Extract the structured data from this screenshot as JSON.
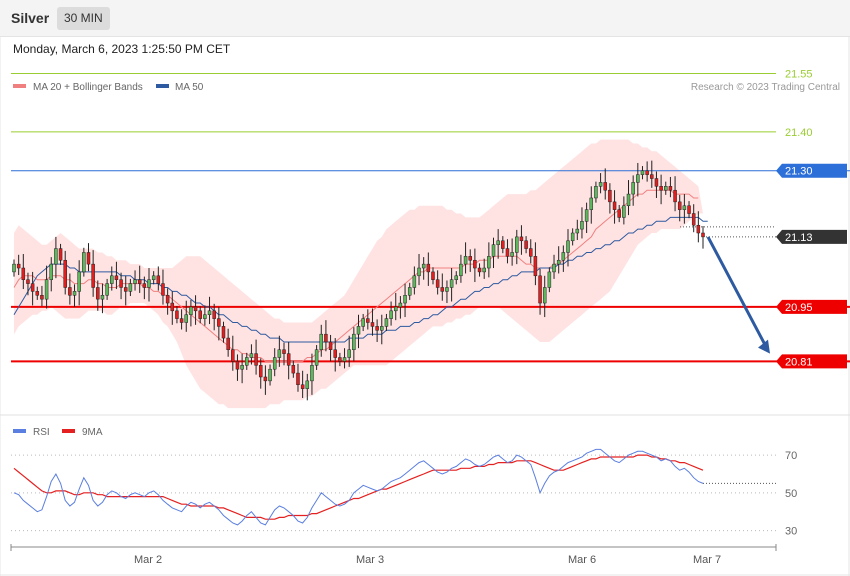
{
  "header": {
    "instrument": "Silver",
    "timeframe": "30 MIN",
    "datetime": "Monday, March 6, 2023 1:25:50 PM CET"
  },
  "legend_main": [
    {
      "label": "MA 20 + Bollinger Bands",
      "color": "#f08080"
    },
    {
      "label": "MA 50",
      "color": "#2d5aa0"
    }
  ],
  "copyright": "Research © 2023 Trading Central",
  "legend_rsi": [
    {
      "label": "RSI",
      "color": "#5b7fe0"
    },
    {
      "label": "9MA",
      "color": "#e52020"
    }
  ],
  "colors": {
    "bull": "#5cb85c",
    "bear": "#e02020",
    "wick": "#222222",
    "resistance": "#9acd32",
    "pivot_line": "#2d6fd8",
    "support": "#ee0000",
    "arrow": "#2d5aa0",
    "band_fill": "#ffd9d9"
  },
  "chart_data": [
    {
      "type": "candlestick",
      "title": "Silver",
      "y_ticks": [
        20.81,
        20.95,
        21.13,
        21.3,
        21.4,
        21.55
      ],
      "x_ticks": [
        "Mar 2",
        "Mar 3",
        "Mar 6",
        "Mar 7"
      ],
      "ylim": [
        20.68,
        21.6
      ],
      "levels": [
        {
          "value": 21.55,
          "label": "21.55",
          "role": "resistance"
        },
        {
          "value": 21.4,
          "label": "21.40",
          "role": "resistance"
        },
        {
          "value": 21.3,
          "label": "21.30",
          "role": "pivot"
        },
        {
          "value": 21.13,
          "label": "21.13",
          "role": "current"
        },
        {
          "value": 20.95,
          "label": "20.95",
          "role": "support"
        },
        {
          "value": 20.81,
          "label": "20.81",
          "role": "support"
        }
      ],
      "forecast_arrow": {
        "from": 21.13,
        "to": 20.83
      },
      "closes": [
        21.06,
        21.05,
        21.02,
        21.01,
        20.99,
        20.98,
        20.97,
        21.02,
        21.06,
        21.1,
        21.07,
        21.0,
        20.98,
        20.99,
        21.04,
        21.09,
        21.06,
        21.0,
        20.97,
        20.98,
        21.01,
        21.03,
        21.02,
        21.0,
        20.99,
        21.01,
        21.02,
        21.01,
        21.0,
        21.02,
        21.03,
        21.01,
        20.98,
        20.96,
        20.94,
        20.92,
        20.91,
        20.93,
        20.95,
        20.94,
        20.92,
        20.93,
        20.94,
        20.92,
        20.9,
        20.87,
        20.84,
        20.81,
        20.79,
        20.8,
        20.82,
        20.83,
        20.8,
        20.77,
        20.76,
        20.79,
        20.82,
        20.84,
        20.83,
        20.8,
        20.78,
        20.75,
        20.74,
        20.76,
        20.8,
        20.84,
        20.88,
        20.86,
        20.84,
        20.82,
        20.81,
        20.82,
        20.84,
        20.88,
        20.9,
        20.92,
        20.91,
        20.9,
        20.89,
        20.9,
        20.92,
        20.94,
        20.95,
        20.96,
        20.98,
        21.0,
        21.03,
        21.05,
        21.06,
        21.04,
        21.02,
        21.0,
        20.99,
        21.0,
        21.02,
        21.03,
        21.06,
        21.08,
        21.07,
        21.05,
        21.04,
        21.05,
        21.08,
        21.11,
        21.12,
        21.1,
        21.08,
        21.09,
        21.13,
        21.12,
        21.1,
        21.08,
        21.03,
        20.96,
        21.0,
        21.04,
        21.06,
        21.07,
        21.09,
        21.12,
        21.14,
        21.15,
        21.17,
        21.2,
        21.23,
        21.26,
        21.27,
        21.25,
        21.22,
        21.2,
        21.18,
        21.21,
        21.24,
        21.27,
        21.29,
        21.3,
        21.29,
        21.28,
        21.26,
        21.25,
        21.26,
        21.25,
        21.22,
        21.2,
        21.21,
        21.19,
        21.16,
        21.14,
        21.13
      ],
      "ma20": [
        21.0,
        21.02,
        21.03,
        21.03,
        21.03,
        21.02,
        21.02,
        21.02,
        21.03,
        21.03,
        21.03,
        21.02,
        21.02,
        21.01,
        21.01,
        21.01,
        21.02,
        21.02,
        21.01,
        21.01,
        21.0,
        21.0,
        21.0,
        21.01,
        21.01,
        21.01,
        21.01,
        21.01,
        21.0,
        21.0,
        20.99,
        20.99,
        20.98,
        20.98,
        20.97,
        20.96,
        20.95,
        20.94,
        20.93,
        20.92,
        20.91,
        20.9,
        20.89,
        20.88,
        20.87,
        20.86,
        20.85,
        20.84,
        20.84,
        20.83,
        20.83,
        20.82,
        20.82,
        20.82,
        20.81,
        20.81,
        20.81,
        20.81,
        20.81,
        20.81,
        20.81,
        20.81,
        20.81,
        20.82,
        20.82,
        20.83,
        20.84,
        20.84,
        20.85,
        20.86,
        20.87,
        20.88,
        20.89,
        20.9,
        20.91,
        20.92,
        20.93,
        20.94,
        20.95,
        20.96,
        20.97,
        20.98,
        20.99,
        21.0,
        21.01,
        21.02,
        21.03,
        21.04,
        21.04,
        21.05,
        21.05,
        21.05,
        21.05,
        21.05,
        21.05,
        21.05,
        21.05,
        21.06,
        21.06,
        21.06,
        21.07,
        21.07,
        21.07,
        21.08,
        21.08,
        21.08,
        21.08,
        21.08,
        21.08,
        21.07,
        21.06,
        21.06,
        21.05,
        21.05,
        21.05,
        21.05,
        21.06,
        21.06,
        21.07,
        21.08,
        21.09,
        21.1,
        21.11,
        21.12,
        21.13,
        21.15,
        21.16,
        21.17,
        21.18,
        21.19,
        21.2,
        21.21,
        21.22,
        21.23,
        21.24,
        21.24,
        21.25,
        21.25,
        21.25,
        21.25,
        21.25,
        21.25,
        21.24,
        21.24,
        21.24,
        21.24,
        21.23,
        21.23
      ],
      "bb_upper": [
        21.14,
        21.16,
        21.15,
        21.14,
        21.13,
        21.12,
        21.11,
        21.11,
        21.12,
        21.13,
        21.14,
        21.13,
        21.12,
        21.11,
        21.1,
        21.1,
        21.1,
        21.1,
        21.09,
        21.09,
        21.08,
        21.08,
        21.07,
        21.07,
        21.07,
        21.06,
        21.06,
        21.06,
        21.05,
        21.05,
        21.05,
        21.05,
        21.05,
        21.05,
        21.05,
        21.06,
        21.07,
        21.08,
        21.08,
        21.08,
        21.08,
        21.07,
        21.06,
        21.05,
        21.04,
        21.03,
        21.02,
        21.01,
        21.0,
        20.99,
        20.98,
        20.97,
        20.96,
        20.95,
        20.94,
        20.93,
        20.92,
        20.92,
        20.91,
        20.91,
        20.91,
        20.91,
        20.91,
        20.91,
        20.91,
        20.92,
        20.93,
        20.94,
        20.95,
        20.96,
        20.97,
        20.98,
        21.0,
        21.02,
        21.04,
        21.06,
        21.08,
        21.1,
        21.12,
        21.13,
        21.15,
        21.16,
        21.17,
        21.18,
        21.19,
        21.2,
        21.2,
        21.21,
        21.21,
        21.21,
        21.21,
        21.21,
        21.21,
        21.2,
        21.2,
        21.19,
        21.19,
        21.18,
        21.18,
        21.18,
        21.18,
        21.19,
        21.2,
        21.21,
        21.22,
        21.23,
        21.24,
        21.24,
        21.24,
        21.24,
        21.24,
        21.25,
        21.25,
        21.26,
        21.27,
        21.28,
        21.29,
        21.3,
        21.31,
        21.32,
        21.33,
        21.34,
        21.35,
        21.36,
        21.37,
        21.37,
        21.38,
        21.38,
        21.38,
        21.38,
        21.38,
        21.38,
        21.38,
        21.37,
        21.37,
        21.36,
        21.36,
        21.35,
        21.35,
        21.34,
        21.33,
        21.32,
        21.31,
        21.3,
        21.29,
        21.28,
        21.27,
        21.26
      ],
      "bb_lower": [
        20.88,
        20.9,
        20.91,
        20.92,
        20.93,
        20.93,
        20.94,
        20.94,
        20.95,
        20.94,
        20.93,
        20.92,
        20.92,
        20.92,
        20.92,
        20.93,
        20.94,
        20.94,
        20.94,
        20.94,
        20.93,
        20.93,
        20.94,
        20.95,
        20.95,
        20.96,
        20.96,
        20.96,
        20.96,
        20.95,
        20.94,
        20.93,
        20.91,
        20.9,
        20.88,
        20.86,
        20.83,
        20.8,
        20.78,
        20.76,
        20.74,
        20.73,
        20.72,
        20.71,
        20.7,
        20.7,
        20.69,
        20.69,
        20.69,
        20.69,
        20.69,
        20.69,
        20.69,
        20.69,
        20.69,
        20.7,
        20.7,
        20.7,
        20.71,
        20.71,
        20.71,
        20.71,
        20.71,
        20.72,
        20.72,
        20.73,
        20.74,
        20.74,
        20.75,
        20.76,
        20.77,
        20.78,
        20.79,
        20.8,
        20.8,
        20.8,
        20.8,
        20.8,
        20.8,
        20.8,
        20.8,
        20.81,
        20.82,
        20.83,
        20.84,
        20.85,
        20.86,
        20.87,
        20.88,
        20.89,
        20.9,
        20.9,
        20.9,
        20.91,
        20.91,
        20.92,
        20.92,
        20.93,
        20.93,
        20.94,
        20.95,
        20.95,
        20.95,
        20.95,
        20.95,
        20.94,
        20.93,
        20.92,
        20.91,
        20.9,
        20.89,
        20.88,
        20.87,
        20.86,
        20.86,
        20.86,
        20.87,
        20.88,
        20.89,
        20.9,
        20.91,
        20.92,
        20.93,
        20.94,
        20.95,
        20.96,
        20.97,
        20.98,
        20.99,
        21.01,
        21.03,
        21.05,
        21.07,
        21.09,
        21.11,
        21.12,
        21.13,
        21.14,
        21.14,
        21.15,
        21.15,
        21.15,
        21.15,
        21.15,
        21.16,
        21.17,
        21.18,
        21.19,
        21.19,
        21.2
      ],
      "ma50": [
        20.93,
        20.95,
        20.97,
        20.99,
        21.01,
        21.03,
        21.04,
        21.05,
        21.06,
        21.06,
        21.06,
        21.06,
        21.05,
        21.05,
        21.04,
        21.04,
        21.04,
        21.04,
        21.04,
        21.04,
        21.04,
        21.04,
        21.04,
        21.03,
        21.03,
        21.03,
        21.02,
        21.02,
        21.02,
        21.01,
        21.01,
        21.01,
        21.0,
        21.0,
        20.99,
        20.99,
        20.98,
        20.98,
        20.97,
        20.96,
        20.96,
        20.95,
        20.95,
        20.94,
        20.93,
        20.93,
        20.92,
        20.91,
        20.91,
        20.9,
        20.9,
        20.89,
        20.89,
        20.88,
        20.88,
        20.87,
        20.87,
        20.87,
        20.86,
        20.86,
        20.86,
        20.86,
        20.86,
        20.86,
        20.86,
        20.86,
        20.86,
        20.86,
        20.86,
        20.86,
        20.86,
        20.86,
        20.87,
        20.87,
        20.87,
        20.87,
        20.88,
        20.88,
        20.88,
        20.88,
        20.89,
        20.89,
        20.89,
        20.9,
        20.9,
        20.9,
        20.91,
        20.91,
        20.92,
        20.92,
        20.93,
        20.93,
        20.94,
        20.95,
        20.95,
        20.96,
        20.97,
        20.97,
        20.98,
        20.99,
        20.99,
        21.0,
        21.0,
        21.01,
        21.01,
        21.02,
        21.02,
        21.03,
        21.03,
        21.04,
        21.04,
        21.04,
        21.04,
        21.05,
        21.05,
        21.05,
        21.05,
        21.06,
        21.06,
        21.07,
        21.07,
        21.08,
        21.08,
        21.09,
        21.09,
        21.1,
        21.1,
        21.11,
        21.11,
        21.12,
        21.12,
        21.13,
        21.14,
        21.14,
        21.15,
        21.15,
        21.16,
        21.16,
        21.17,
        21.17,
        21.17,
        21.18,
        21.18,
        21.18,
        21.18,
        21.18,
        21.18,
        21.18,
        21.17,
        21.17
      ]
    },
    {
      "type": "line",
      "title": "RSI",
      "y_ticks": [
        30,
        50,
        70
      ],
      "ylim": [
        25,
        78
      ],
      "series": [
        {
          "name": "RSI",
          "values": [
            50,
            49,
            46,
            44,
            42,
            40,
            41,
            48,
            56,
            60,
            55,
            46,
            43,
            45,
            52,
            58,
            54,
            46,
            43,
            45,
            49,
            51,
            50,
            48,
            47,
            49,
            50,
            49,
            48,
            50,
            51,
            49,
            46,
            44,
            42,
            41,
            40,
            43,
            45,
            44,
            42,
            44,
            45,
            43,
            41,
            38,
            36,
            34,
            33,
            35,
            38,
            40,
            37,
            34,
            33,
            37,
            41,
            43,
            42,
            40,
            38,
            35,
            34,
            37,
            42,
            46,
            50,
            48,
            46,
            44,
            43,
            44,
            46,
            50,
            52,
            54,
            53,
            52,
            51,
            52,
            54,
            56,
            57,
            58,
            60,
            62,
            64,
            66,
            67,
            65,
            63,
            61,
            60,
            61,
            63,
            64,
            66,
            68,
            67,
            65,
            64,
            65,
            67,
            69,
            70,
            68,
            66,
            67,
            70,
            69,
            67,
            65,
            58,
            50,
            55,
            59,
            61,
            62,
            64,
            66,
            67,
            68,
            69,
            71,
            72,
            73,
            73,
            71,
            69,
            67,
            66,
            68,
            70,
            71,
            72,
            72,
            71,
            70,
            69,
            67,
            68,
            67,
            64,
            62,
            63,
            61,
            58,
            56,
            55
          ]
        },
        {
          "name": "9MA",
          "values": [
            63,
            61,
            59,
            57,
            55,
            53,
            51,
            50,
            50,
            51,
            51,
            51,
            50,
            49,
            49,
            50,
            50,
            50,
            49,
            49,
            48,
            48,
            48,
            48,
            48,
            48,
            48,
            48,
            48,
            48,
            48,
            48,
            48,
            47,
            46,
            45,
            44,
            44,
            43,
            43,
            43,
            43,
            43,
            43,
            42,
            42,
            41,
            40,
            39,
            38,
            37,
            37,
            37,
            37,
            36,
            36,
            36,
            37,
            37,
            38,
            38,
            38,
            38,
            38,
            39,
            39,
            40,
            41,
            42,
            43,
            44,
            45,
            46,
            47,
            47,
            48,
            49,
            50,
            51,
            52,
            52,
            53,
            54,
            55,
            56,
            57,
            58,
            59,
            60,
            61,
            62,
            62,
            62,
            62,
            62,
            62,
            63,
            63,
            63,
            64,
            64,
            64,
            65,
            65,
            66,
            66,
            66,
            66,
            67,
            67,
            67,
            67,
            66,
            65,
            64,
            63,
            62,
            62,
            62,
            63,
            64,
            65,
            66,
            67,
            68,
            68,
            69,
            69,
            69,
            69,
            69,
            69,
            69,
            69,
            70,
            70,
            70,
            69,
            69,
            68,
            68,
            67,
            67,
            66,
            66,
            65,
            64,
            63,
            62
          ]
        }
      ]
    }
  ]
}
